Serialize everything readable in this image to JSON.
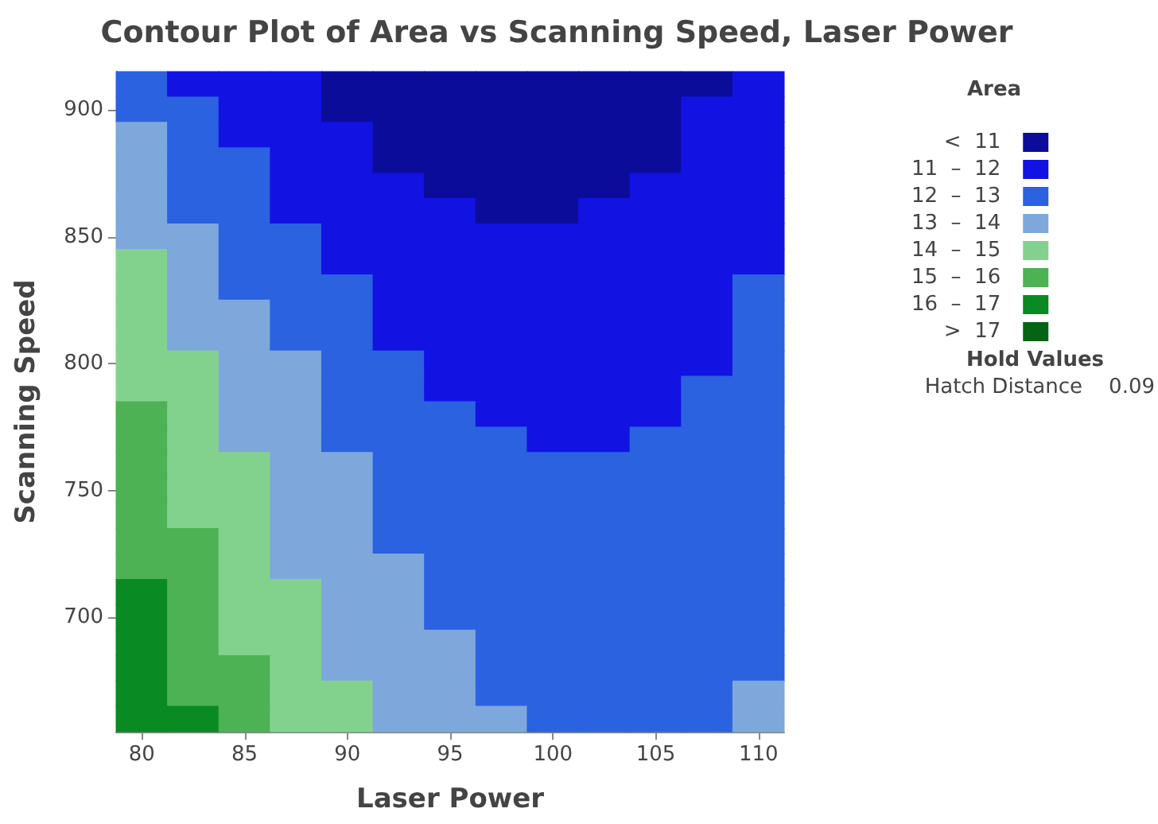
{
  "chart_data": {
    "type": "heatmap",
    "title": "Contour Plot of Area vs Scanning Speed, Laser Power",
    "xlabel": "Laser Power",
    "ylabel": "Scanning Speed",
    "legend_title": "Area",
    "clim": [
      10,
      18
    ],
    "categories": [
      "80",
      null,
      "85",
      null,
      "90",
      null,
      "95",
      null,
      "100",
      null,
      "105",
      null,
      "110"
    ],
    "y_categories": [
      null,
      "900",
      null,
      null,
      null,
      null,
      "850",
      null,
      null,
      null,
      null,
      "800",
      null,
      null,
      null,
      null,
      "750",
      null,
      null,
      null,
      null,
      "700",
      null,
      null,
      null,
      null
    ],
    "cells": [
      [
        12.5,
        11.5,
        11.5,
        11.5,
        10.5,
        10.5,
        10.5,
        10.5,
        10.5,
        10.5,
        10.5,
        10.5,
        11.5
      ],
      [
        12.5,
        12.5,
        11.5,
        11.5,
        10.5,
        10.5,
        10.5,
        10.5,
        10.5,
        10.5,
        10.5,
        11.5,
        11.5
      ],
      [
        13.5,
        12.5,
        11.5,
        11.5,
        11.5,
        10.5,
        10.5,
        10.5,
        10.5,
        10.5,
        10.5,
        11.5,
        11.5
      ],
      [
        13.5,
        12.5,
        12.5,
        11.5,
        11.5,
        10.5,
        10.5,
        10.5,
        10.5,
        10.5,
        10.5,
        11.5,
        11.5
      ],
      [
        13.5,
        12.5,
        12.5,
        11.5,
        11.5,
        11.5,
        10.5,
        10.5,
        10.5,
        10.5,
        11.5,
        11.5,
        11.5
      ],
      [
        13.5,
        12.5,
        12.5,
        11.5,
        11.5,
        11.5,
        11.5,
        10.5,
        10.5,
        11.5,
        11.5,
        11.5,
        11.5
      ],
      [
        13.5,
        13.5,
        12.5,
        12.5,
        11.5,
        11.5,
        11.5,
        11.5,
        11.5,
        11.5,
        11.5,
        11.5,
        11.5
      ],
      [
        14.5,
        13.5,
        12.5,
        12.5,
        11.5,
        11.5,
        11.5,
        11.5,
        11.5,
        11.5,
        11.5,
        11.5,
        11.5
      ],
      [
        14.5,
        13.5,
        12.5,
        12.5,
        12.5,
        11.5,
        11.5,
        11.5,
        11.5,
        11.5,
        11.5,
        11.5,
        12.5
      ],
      [
        14.5,
        13.5,
        13.5,
        12.5,
        12.5,
        11.5,
        11.5,
        11.5,
        11.5,
        11.5,
        11.5,
        11.5,
        12.5
      ],
      [
        14.5,
        13.5,
        13.5,
        12.5,
        12.5,
        11.5,
        11.5,
        11.5,
        11.5,
        11.5,
        11.5,
        11.5,
        12.5
      ],
      [
        14.5,
        14.5,
        13.5,
        13.5,
        12.5,
        12.5,
        11.5,
        11.5,
        11.5,
        11.5,
        11.5,
        11.5,
        12.5
      ],
      [
        14.5,
        14.5,
        13.5,
        13.5,
        12.5,
        12.5,
        11.5,
        11.5,
        11.5,
        11.5,
        11.5,
        12.5,
        12.5
      ],
      [
        15.5,
        14.5,
        13.5,
        13.5,
        12.5,
        12.5,
        12.5,
        11.5,
        11.5,
        11.5,
        11.5,
        12.5,
        12.5
      ],
      [
        15.5,
        14.5,
        13.5,
        13.5,
        12.5,
        12.5,
        12.5,
        12.5,
        11.5,
        11.5,
        12.5,
        12.5,
        12.5
      ],
      [
        15.5,
        14.5,
        14.5,
        13.5,
        13.5,
        12.5,
        12.5,
        12.5,
        12.5,
        12.5,
        12.5,
        12.5,
        12.5
      ],
      [
        15.5,
        14.5,
        14.5,
        13.5,
        13.5,
        12.5,
        12.5,
        12.5,
        12.5,
        12.5,
        12.5,
        12.5,
        12.5
      ],
      [
        15.5,
        14.5,
        14.5,
        13.5,
        13.5,
        12.5,
        12.5,
        12.5,
        12.5,
        12.5,
        12.5,
        12.5,
        12.5
      ],
      [
        15.5,
        15.5,
        14.5,
        13.5,
        13.5,
        12.5,
        12.5,
        12.5,
        12.5,
        12.5,
        12.5,
        12.5,
        12.5
      ],
      [
        15.5,
        15.5,
        14.5,
        13.5,
        13.5,
        13.5,
        12.5,
        12.5,
        12.5,
        12.5,
        12.5,
        12.5,
        12.5
      ],
      [
        16.5,
        15.5,
        14.5,
        14.5,
        13.5,
        13.5,
        12.5,
        12.5,
        12.5,
        12.5,
        12.5,
        12.5,
        12.5
      ],
      [
        16.5,
        15.5,
        14.5,
        14.5,
        13.5,
        13.5,
        12.5,
        12.5,
        12.5,
        12.5,
        12.5,
        12.5,
        12.5
      ],
      [
        16.5,
        15.5,
        14.5,
        14.5,
        13.5,
        13.5,
        13.5,
        12.5,
        12.5,
        12.5,
        12.5,
        12.5,
        12.5
      ],
      [
        16.5,
        15.5,
        15.5,
        14.5,
        13.5,
        13.5,
        13.5,
        12.5,
        12.5,
        12.5,
        12.5,
        12.5,
        12.5
      ],
      [
        16.5,
        15.5,
        15.5,
        14.5,
        14.5,
        13.5,
        13.5,
        12.5,
        12.5,
        12.5,
        12.5,
        12.5,
        13.5
      ],
      [
        16.5,
        16.5,
        15.5,
        14.5,
        14.5,
        13.5,
        13.5,
        13.5,
        12.5,
        12.5,
        12.5,
        12.5,
        13.5
      ]
    ],
    "cticks": [
      {
        "value": 10.5,
        "label": "<  11"
      },
      {
        "value": 11.5,
        "label": "11  –  12"
      },
      {
        "value": 12.5,
        "label": "12  –  13"
      },
      {
        "value": 13.5,
        "label": "13  –  14"
      },
      {
        "value": 14.5,
        "label": "14  –  15"
      },
      {
        "value": 15.5,
        "label": "15  –  16"
      },
      {
        "value": 16.5,
        "label": "16  –  17"
      },
      {
        "value": 17.5,
        "label": ">  17"
      }
    ],
    "colors": [
      "#0c0c9a",
      "#1212e2",
      "#2a62e0",
      "#7ea8dc",
      "#82d28e",
      "#4cb254",
      "#0a8a22",
      "#046414"
    ],
    "annotations": [
      "Hold Values",
      "Hatch Distance    0.09"
    ]
  }
}
